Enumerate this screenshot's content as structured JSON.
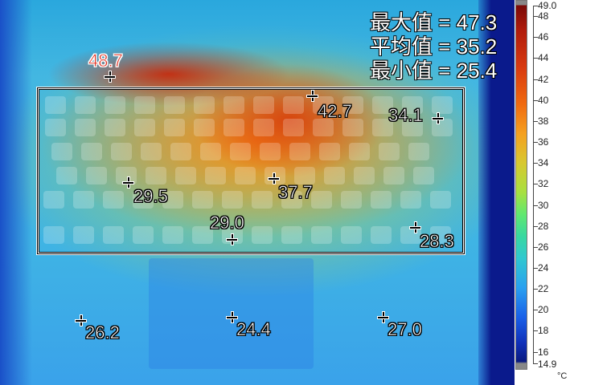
{
  "stats": [
    {
      "label": "最大值",
      "value": "47.3"
    },
    {
      "label": "平均值",
      "value": "35.2"
    },
    {
      "label": "最小值",
      "value": "25.4"
    }
  ],
  "measurements": [
    {
      "value": "48.7",
      "hot": true
    },
    {
      "value": "42.7"
    },
    {
      "value": "34.1"
    },
    {
      "value": "29.5"
    },
    {
      "value": "37.7"
    },
    {
      "value": "29.0"
    },
    {
      "value": "28.3"
    },
    {
      "value": "26.2"
    },
    {
      "value": "24.4"
    },
    {
      "value": "27.0"
    }
  ],
  "colorbar": {
    "max": "49.0",
    "min": "14.9",
    "unit": "°C",
    "ticks": [
      "48",
      "46",
      "44",
      "42",
      "40",
      "38",
      "36",
      "34",
      "32",
      "30",
      "28",
      "26",
      "24",
      "22",
      "20",
      "18",
      "16"
    ],
    "palette": "rainbow"
  }
}
